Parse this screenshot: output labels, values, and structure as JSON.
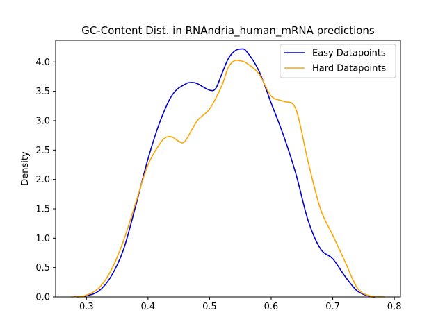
{
  "chart_data": {
    "type": "line",
    "title": "GC-Content Dist. in RNAndria_human_mRNA predictions",
    "xlabel": "",
    "ylabel": "Density",
    "xlim": [
      0.25,
      0.81
    ],
    "ylim": [
      0.0,
      4.37
    ],
    "xticks": [
      0.3,
      0.4,
      0.5,
      0.6,
      0.7,
      0.8
    ],
    "xtick_labels": [
      "0.3",
      "0.4",
      "0.5",
      "0.6",
      "0.7",
      "0.8"
    ],
    "yticks": [
      0.0,
      0.5,
      1.0,
      1.5,
      2.0,
      2.5,
      3.0,
      3.5,
      4.0
    ],
    "ytick_labels": [
      "0.0",
      "0.5",
      "1.0",
      "1.5",
      "2.0",
      "2.5",
      "3.0",
      "3.5",
      "4.0"
    ],
    "grid": false,
    "legend_position": "top-right",
    "series": [
      {
        "name": "Easy Datapoints",
        "color": "#0000cd",
        "x": [
          0.285,
          0.3,
          0.32,
          0.34,
          0.36,
          0.38,
          0.4,
          0.42,
          0.44,
          0.46,
          0.47,
          0.48,
          0.5,
          0.51,
          0.52,
          0.53,
          0.54,
          0.55,
          0.56,
          0.58,
          0.6,
          0.62,
          0.64,
          0.66,
          0.68,
          0.7,
          0.72,
          0.74,
          0.76,
          0.77
        ],
        "y": [
          0.0,
          0.02,
          0.1,
          0.35,
          0.8,
          1.55,
          2.35,
          3.0,
          3.45,
          3.62,
          3.65,
          3.63,
          3.52,
          3.55,
          3.8,
          4.05,
          4.18,
          4.22,
          4.18,
          3.85,
          3.3,
          2.75,
          2.1,
          1.3,
          0.82,
          0.65,
          0.35,
          0.1,
          0.01,
          0.0
        ]
      },
      {
        "name": "Hard Datapoints",
        "color": "#ffa500",
        "x": [
          0.275,
          0.29,
          0.3,
          0.32,
          0.34,
          0.36,
          0.38,
          0.4,
          0.42,
          0.43,
          0.44,
          0.45,
          0.46,
          0.48,
          0.5,
          0.52,
          0.53,
          0.54,
          0.55,
          0.56,
          0.58,
          0.6,
          0.62,
          0.64,
          0.66,
          0.68,
          0.7,
          0.72,
          0.74,
          0.76,
          0.785
        ],
        "y": [
          0.0,
          0.01,
          0.03,
          0.15,
          0.45,
          0.95,
          1.6,
          2.25,
          2.62,
          2.72,
          2.72,
          2.65,
          2.65,
          3.0,
          3.2,
          3.6,
          3.9,
          4.02,
          4.02,
          3.98,
          3.8,
          3.42,
          3.33,
          3.2,
          2.3,
          1.5,
          1.05,
          0.6,
          0.15,
          0.02,
          0.0
        ]
      }
    ]
  }
}
